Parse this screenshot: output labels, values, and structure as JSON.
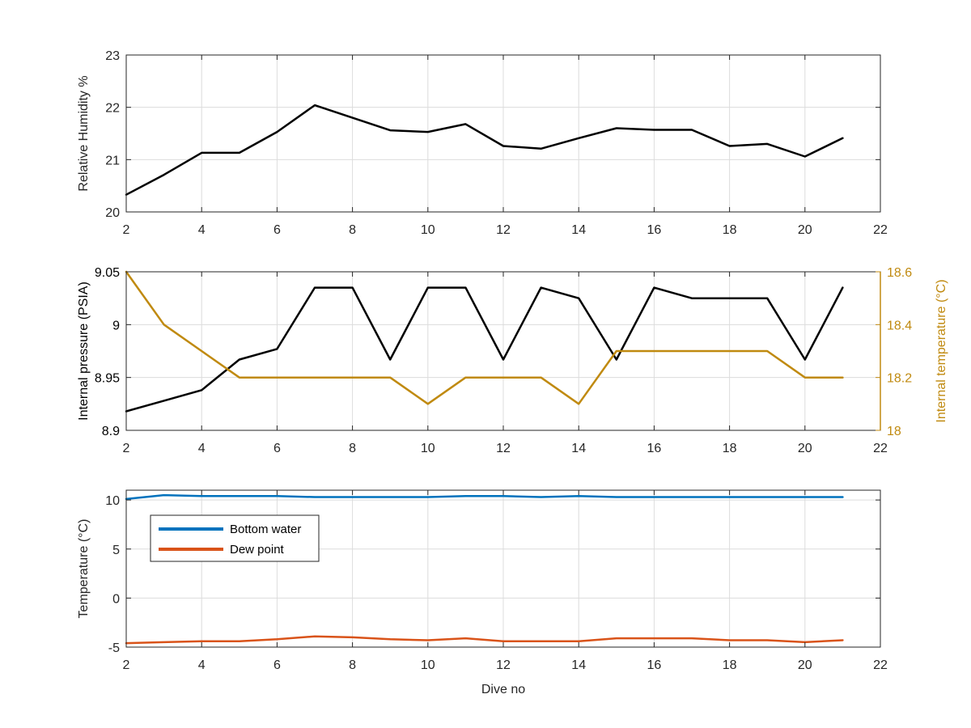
{
  "chart_data": [
    {
      "type": "line",
      "xlabel": "",
      "ylabel": "Relative Humidity %",
      "xlim": [
        2,
        22
      ],
      "ylim": [
        20,
        23
      ],
      "xticks": [
        2,
        4,
        6,
        8,
        10,
        12,
        14,
        16,
        18,
        20,
        22
      ],
      "yticks": [
        20,
        21,
        22,
        23
      ],
      "grid": true,
      "series": [
        {
          "color": "#000000",
          "x": [
            2,
            3,
            4,
            5,
            6,
            7,
            8,
            9,
            10,
            11,
            12,
            13,
            14,
            15,
            16,
            17,
            18,
            19,
            20,
            21
          ],
          "y": [
            20.33,
            20.71,
            21.13,
            21.13,
            21.53,
            22.04,
            21.8,
            21.56,
            21.53,
            21.68,
            21.26,
            21.21,
            21.41,
            21.6,
            21.57,
            21.57,
            21.26,
            21.3,
            21.06,
            21.41
          ]
        }
      ]
    },
    {
      "type": "line",
      "xlabel": "",
      "ylabel": "Internal pressure (PSIA)",
      "y2label": "Internal temperature (°C)",
      "xlim": [
        2,
        22
      ],
      "ylim": [
        8.9,
        9.05
      ],
      "y2lim": [
        18,
        18.6
      ],
      "xticks": [
        2,
        4,
        6,
        8,
        10,
        12,
        14,
        16,
        18,
        20,
        22
      ],
      "yticks": [
        8.9,
        8.95,
        9,
        9.05
      ],
      "y2ticks": [
        18,
        18.2,
        18.4,
        18.6
      ],
      "grid": true,
      "series": [
        {
          "axis": "left",
          "color": "#000000",
          "x": [
            2,
            3,
            4,
            5,
            6,
            7,
            8,
            9,
            10,
            11,
            12,
            13,
            14,
            15,
            16,
            17,
            18,
            19,
            20,
            21
          ],
          "y": [
            8.918,
            8.928,
            8.938,
            8.967,
            8.977,
            9.035,
            9.035,
            8.967,
            9.035,
            9.035,
            8.967,
            9.035,
            9.025,
            8.967,
            9.035,
            9.025,
            9.025,
            9.025,
            8.967,
            9.035
          ]
        },
        {
          "axis": "right",
          "color": "#C08A10",
          "x": [
            2,
            3,
            4,
            5,
            6,
            7,
            8,
            9,
            10,
            11,
            12,
            13,
            14,
            15,
            16,
            17,
            18,
            19,
            20,
            21
          ],
          "y": [
            18.6,
            18.4,
            18.3,
            18.2,
            18.2,
            18.2,
            18.2,
            18.2,
            18.1,
            18.2,
            18.2,
            18.2,
            18.1,
            18.3,
            18.3,
            18.3,
            18.3,
            18.3,
            18.2,
            18.2
          ]
        }
      ]
    },
    {
      "type": "line",
      "xlabel": "Dive no",
      "ylabel": "Temperature (°C)",
      "xlim": [
        2,
        22
      ],
      "ylim": [
        -5,
        11
      ],
      "xticks": [
        2,
        4,
        6,
        8,
        10,
        12,
        14,
        16,
        18,
        20,
        22
      ],
      "yticks": [
        -5,
        0,
        5,
        10
      ],
      "grid": true,
      "legend_position": "upper-left",
      "series": [
        {
          "name": "Bottom water",
          "color": "#0072BD",
          "x": [
            2,
            3,
            4,
            5,
            6,
            7,
            8,
            9,
            10,
            11,
            12,
            13,
            14,
            15,
            16,
            17,
            18,
            19,
            20,
            21
          ],
          "y": [
            10.1,
            10.5,
            10.4,
            10.4,
            10.4,
            10.3,
            10.3,
            10.3,
            10.3,
            10.4,
            10.4,
            10.3,
            10.4,
            10.3,
            10.3,
            10.3,
            10.3,
            10.3,
            10.3,
            10.3
          ]
        },
        {
          "name": "Dew point",
          "color": "#D95319",
          "x": [
            2,
            3,
            4,
            5,
            6,
            7,
            8,
            9,
            10,
            11,
            12,
            13,
            14,
            15,
            16,
            17,
            18,
            19,
            20,
            21
          ],
          "y": [
            -4.6,
            -4.5,
            -4.4,
            -4.4,
            -4.2,
            -3.9,
            -4.0,
            -4.2,
            -4.3,
            -4.1,
            -4.4,
            -4.4,
            -4.4,
            -4.1,
            -4.1,
            -4.1,
            -4.3,
            -4.3,
            -4.5,
            -4.3
          ]
        }
      ]
    }
  ]
}
